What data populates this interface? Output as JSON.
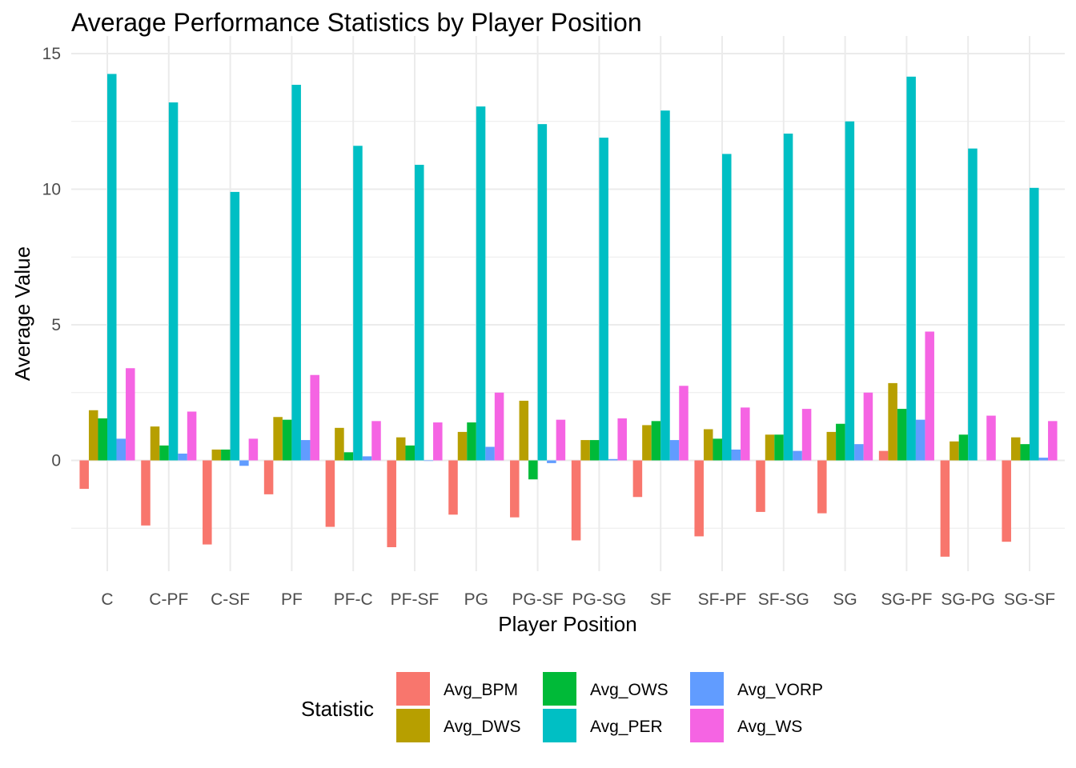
{
  "chart_data": {
    "type": "bar",
    "title": "Average Performance Statistics by Player Position",
    "xlabel": "Player Position",
    "ylabel": "Average Value",
    "ylim": [
      -4.2,
      15.3
    ],
    "yticks": [
      0,
      5,
      10,
      15
    ],
    "grid": true,
    "legend_position": "bottom",
    "legend_title": "Statistic",
    "categories": [
      "C",
      "C-PF",
      "C-SF",
      "PF",
      "PF-C",
      "PF-SF",
      "PG",
      "PG-SF",
      "PG-SG",
      "SF",
      "SF-PF",
      "SF-SG",
      "SG",
      "SG-PF",
      "SG-PG",
      "SG-SF"
    ],
    "series": [
      {
        "name": "Avg_BPM",
        "color": "#F8766D",
        "values": [
          -1.05,
          -2.4,
          -3.1,
          -1.25,
          -2.45,
          -3.2,
          -2.0,
          -2.1,
          -2.95,
          -1.35,
          -2.8,
          -1.9,
          -1.95,
          0.35,
          -3.55,
          -3.0
        ]
      },
      {
        "name": "Avg_DWS",
        "color": "#B79F00",
        "values": [
          1.85,
          1.25,
          0.4,
          1.6,
          1.2,
          0.85,
          1.05,
          2.2,
          0.75,
          1.3,
          1.15,
          0.95,
          1.05,
          2.85,
          0.7,
          0.85
        ]
      },
      {
        "name": "Avg_OWS",
        "color": "#00BA38",
        "values": [
          1.55,
          0.55,
          0.4,
          1.5,
          0.3,
          0.55,
          1.4,
          -0.7,
          0.75,
          1.45,
          0.8,
          0.95,
          1.35,
          1.9,
          0.95,
          0.6
        ]
      },
      {
        "name": "Avg_PER",
        "color": "#00BFC4",
        "values": [
          14.25,
          13.2,
          9.9,
          13.85,
          11.6,
          10.9,
          13.05,
          12.4,
          11.9,
          12.9,
          11.3,
          12.05,
          12.5,
          14.15,
          11.5,
          10.05
        ]
      },
      {
        "name": "Avg_VORP",
        "color": "#619CFF",
        "values": [
          0.8,
          0.25,
          -0.2,
          0.75,
          0.15,
          -0.02,
          0.5,
          -0.1,
          0.05,
          0.75,
          0.4,
          0.35,
          0.6,
          1.5,
          0.0,
          0.1
        ]
      },
      {
        "name": "Avg_WS",
        "color": "#F564E3",
        "values": [
          3.4,
          1.8,
          0.8,
          3.15,
          1.45,
          1.4,
          2.5,
          1.5,
          1.55,
          2.75,
          1.95,
          1.9,
          2.5,
          4.75,
          1.65,
          1.45
        ]
      }
    ]
  }
}
